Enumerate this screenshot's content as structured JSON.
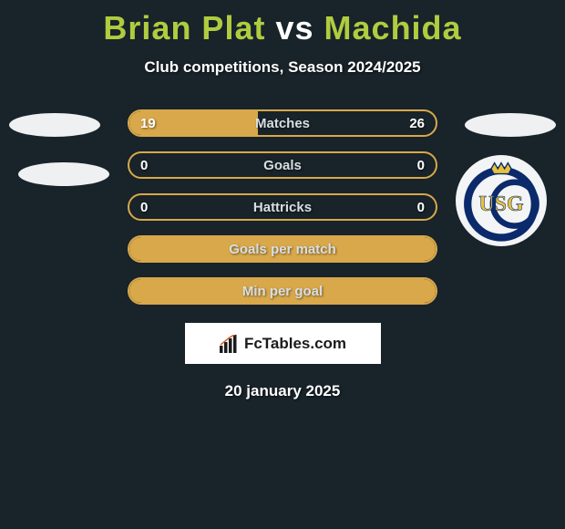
{
  "title": {
    "left": "Brian Plat",
    "vs": "vs",
    "right": "Machida"
  },
  "subtitle": "Club competitions, Season 2024/2025",
  "accent_color": "#d8a84a",
  "title_color": "#b0cc3f",
  "background_color": "#18232a",
  "rows": [
    {
      "key": "matches",
      "label": "Matches",
      "left": "19",
      "right": "26",
      "fill_pct": 42,
      "show_values": true
    },
    {
      "key": "goals",
      "label": "Goals",
      "left": "0",
      "right": "0",
      "fill_pct": 0,
      "show_values": true
    },
    {
      "key": "hattricks",
      "label": "Hattricks",
      "left": "0",
      "right": "0",
      "fill_pct": 0,
      "show_values": true
    },
    {
      "key": "gpm",
      "label": "Goals per match",
      "left": "",
      "right": "",
      "fill_pct": 100,
      "show_values": false
    },
    {
      "key": "mpg",
      "label": "Min per goal",
      "left": "",
      "right": "",
      "fill_pct": 100,
      "show_values": false
    }
  ],
  "watermark": {
    "text": "FcTables.com"
  },
  "date": "20 january 2025",
  "crest": {
    "ring_color": "#0a2a6b",
    "crown_color": "#e8c23a",
    "letters": "USG",
    "monogram_color": "#e8c23a"
  }
}
